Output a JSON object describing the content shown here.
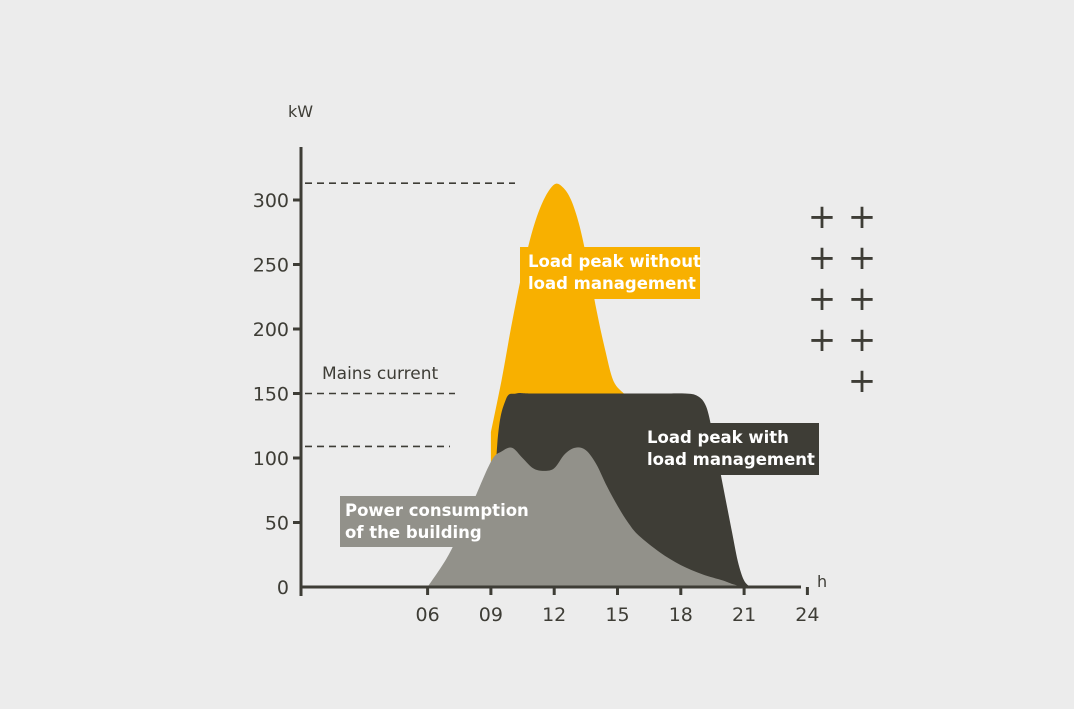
{
  "chart_data": {
    "type": "area",
    "ylabel": "kW",
    "xlabel": "h",
    "ylim": [
      0,
      340
    ],
    "xlim": [
      0,
      25.5
    ],
    "x_ticks": [
      "06",
      "09",
      "12",
      "15",
      "18",
      "21",
      "24"
    ],
    "y_ticks": [
      "0",
      "50",
      "100",
      "150",
      "200",
      "250",
      "300"
    ],
    "series": [
      {
        "name": "Load peak without load management",
        "color": "#f8b000",
        "x": [
          9.0,
          9.5,
          10.0,
          10.5,
          11.0,
          11.5,
          12.0,
          12.4,
          12.8,
          13.2,
          13.6,
          14.0,
          14.4,
          14.8,
          15.3
        ],
        "values": [
          120,
          160,
          205,
          245,
          278,
          300,
          312,
          310,
          300,
          280,
          250,
          215,
          185,
          160,
          150
        ]
      },
      {
        "name": "Load peak with load management",
        "color": "#3e3d36",
        "x": [
          9.0,
          9.3,
          9.7,
          10.2,
          11.0,
          14.0,
          17.0,
          18.2,
          18.8,
          19.2,
          19.5,
          19.8,
          20.1,
          20.4,
          20.7,
          21.0,
          21.3
        ],
        "values": [
          0,
          110,
          145,
          150,
          150,
          150,
          150,
          150,
          148,
          140,
          120,
          95,
          70,
          45,
          20,
          5,
          0
        ]
      },
      {
        "name": "Power consumption of the building",
        "color": "#92918a",
        "x": [
          6.0,
          7.0,
          8.0,
          9.0,
          9.5,
          10.0,
          10.5,
          11.0,
          11.5,
          12.0,
          12.5,
          13.0,
          13.5,
          14.0,
          14.5,
          15.0,
          15.5,
          16.0,
          17.0,
          18.0,
          19.0,
          20.0,
          20.5,
          21.0,
          21.2
        ],
        "values": [
          0,
          25,
          60,
          97,
          105,
          108,
          100,
          92,
          90,
          92,
          103,
          108,
          106,
          95,
          78,
          63,
          50,
          40,
          27,
          17,
          10,
          5,
          2,
          0,
          0
        ]
      }
    ],
    "reference_lines": [
      {
        "label": "Mains current",
        "value": 150
      },
      {
        "label": "",
        "value": 109
      },
      {
        "label": "",
        "value": 313
      }
    ],
    "annotations": [
      {
        "text": [
          "Load peak without",
          "load management"
        ],
        "color": "#f8b000"
      },
      {
        "text": [
          "Load peak with",
          "load management"
        ],
        "color": "#3e3d36"
      },
      {
        "text": [
          "Power consumption",
          "of the building"
        ],
        "color": "#92918a"
      },
      {
        "text": [
          "Mains current"
        ],
        "color": "none"
      }
    ],
    "legend_marks": [
      "+",
      "+",
      "+",
      "+",
      "+",
      "+",
      "+",
      "+",
      "+"
    ],
    "grid": false
  }
}
